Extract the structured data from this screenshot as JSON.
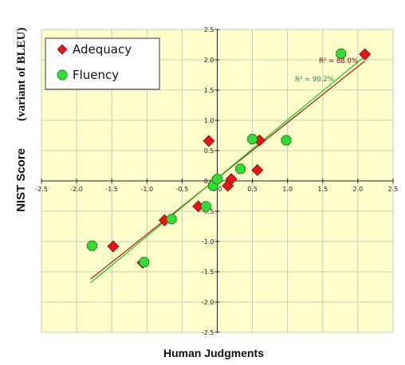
{
  "chart_data": {
    "type": "scatter",
    "title": "",
    "xlabel": "Human Judgments",
    "ylabel": "NIST Score",
    "ylabel_sub": "(variant of BLEU)",
    "xlim": [
      -2.5,
      2.5
    ],
    "ylim": [
      -2.5,
      2.5
    ],
    "x_ticks": [
      -2.5,
      -2.0,
      -1.5,
      -1.0,
      -0.5,
      0.0,
      0.5,
      1.0,
      1.5,
      2.0,
      2.5
    ],
    "y_ticks": [
      -2.5,
      -2.0,
      -1.5,
      -1.0,
      -0.5,
      0.0,
      0.5,
      1.0,
      1.5,
      2.0,
      2.5
    ],
    "x_tick_labels": [
      "-2.5",
      "-2.0",
      "-1.5",
      "-1.0",
      "-0.5",
      "0.0",
      "0.5",
      "1.0",
      "1.5",
      "2.0",
      "2.5"
    ],
    "y_tick_labels": [
      "-2.5",
      "-2.0",
      "-1.5",
      "-1.0",
      "-0.5",
      "0.0",
      "0.5",
      "1.0",
      "1.5",
      "2.0",
      "2.5"
    ],
    "grid": true,
    "legend_position": "top-left",
    "series": [
      {
        "name": "Adequacy",
        "marker": "diamond",
        "color": "#e8141c",
        "points": [
          {
            "x": -1.48,
            "y": -1.08
          },
          {
            "x": -1.06,
            "y": -1.35
          },
          {
            "x": -0.75,
            "y": -0.65
          },
          {
            "x": -0.27,
            "y": -0.42
          },
          {
            "x": -0.12,
            "y": 0.66
          },
          {
            "x": 0.15,
            "y": -0.08
          },
          {
            "x": 0.2,
            "y": 0.03
          },
          {
            "x": 0.57,
            "y": 0.18
          },
          {
            "x": 0.6,
            "y": 0.67
          },
          {
            "x": 2.1,
            "y": 2.09
          }
        ],
        "trendline": {
          "x": [
            -1.8,
            2.1
          ],
          "y": [
            -1.62,
            1.98
          ]
        },
        "r2_label": "R² = 88.0%",
        "r2_color": "#8b0000",
        "trend_color": "#b22222"
      },
      {
        "name": "Fluency",
        "marker": "octagon",
        "color": "#33dd33",
        "points": [
          {
            "x": -1.78,
            "y": -1.07
          },
          {
            "x": -1.04,
            "y": -1.34
          },
          {
            "x": -0.65,
            "y": -0.63
          },
          {
            "x": -0.16,
            "y": -0.42
          },
          {
            "x": -0.06,
            "y": -0.08
          },
          {
            "x": 0.0,
            "y": 0.03
          },
          {
            "x": 0.33,
            "y": 0.2
          },
          {
            "x": 0.5,
            "y": 0.69
          },
          {
            "x": 0.98,
            "y": 0.67
          },
          {
            "x": 1.76,
            "y": 2.1
          }
        ],
        "trendline": {
          "x": [
            -1.8,
            2.1
          ],
          "y": [
            -1.68,
            2.06
          ]
        },
        "r2_label": "R² = 90.2%",
        "r2_color": "#2e8b57",
        "trend_color": "#22cc22"
      }
    ],
    "colors": {
      "plot_background": "#ffffcc",
      "grid": "#bdbdb0",
      "axis": "#222222"
    }
  }
}
